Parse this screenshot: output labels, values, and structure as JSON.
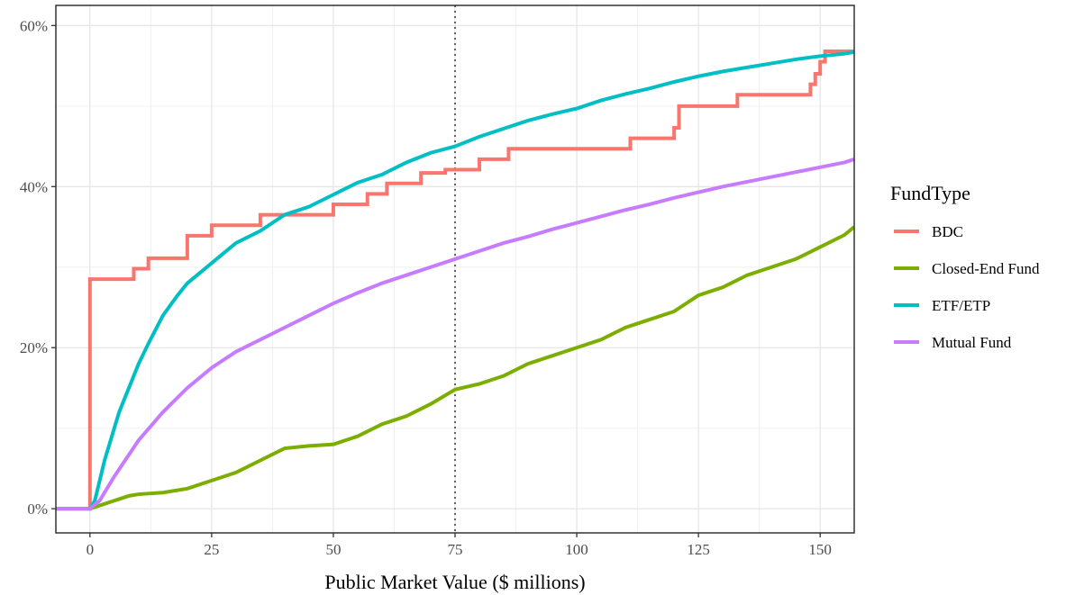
{
  "chart_data": {
    "type": "line",
    "line_style": "step",
    "xlabel": "Public Market Value ($ millions)",
    "ylabel": "",
    "xlim": [
      -7,
      157
    ],
    "ylim": [
      -0.03,
      0.625
    ],
    "x_ticks": [
      0,
      25,
      50,
      75,
      100,
      125,
      150
    ],
    "x_tick_labels": [
      "0",
      "25",
      "50",
      "75",
      "100",
      "125",
      "150"
    ],
    "y_ticks": [
      0,
      0.2,
      0.4,
      0.6
    ],
    "y_tick_labels": [
      "0%",
      "20%",
      "40%",
      "60%"
    ],
    "grid": true,
    "reference_line": {
      "x": 75,
      "style": "dotted"
    },
    "legend": {
      "title": "FundType",
      "placement": "right"
    },
    "series": [
      {
        "name": "BDC",
        "color": "#F8766D",
        "x": [
          -7,
          0,
          0,
          9,
          9,
          12,
          12,
          20,
          20,
          25,
          25,
          35,
          35,
          50,
          50,
          57,
          57,
          61,
          61,
          68,
          68,
          73,
          73,
          80,
          80,
          86,
          86,
          111,
          111,
          120,
          120,
          121,
          121,
          133,
          133,
          148,
          148,
          149,
          149,
          150,
          150,
          151,
          151,
          157
        ],
        "y": [
          0,
          0,
          0.285,
          0.285,
          0.298,
          0.298,
          0.311,
          0.311,
          0.339,
          0.339,
          0.352,
          0.352,
          0.365,
          0.365,
          0.378,
          0.378,
          0.391,
          0.391,
          0.404,
          0.404,
          0.417,
          0.417,
          0.421,
          0.421,
          0.434,
          0.434,
          0.447,
          0.447,
          0.46,
          0.46,
          0.473,
          0.473,
          0.5,
          0.5,
          0.514,
          0.514,
          0.527,
          0.527,
          0.54,
          0.54,
          0.555,
          0.555,
          0.568,
          0.568
        ]
      },
      {
        "name": "Closed-End Fund",
        "color": "#7CAE00",
        "x": [
          -7,
          0,
          2,
          4,
          6,
          8,
          10,
          15,
          20,
          25,
          30,
          35,
          40,
          45,
          50,
          55,
          60,
          65,
          70,
          75,
          80,
          85,
          90,
          95,
          100,
          105,
          110,
          115,
          120,
          125,
          130,
          135,
          140,
          145,
          150,
          155,
          157
        ],
        "y": [
          0,
          0,
          0.004,
          0.008,
          0.012,
          0.016,
          0.018,
          0.02,
          0.025,
          0.035,
          0.045,
          0.06,
          0.075,
          0.078,
          0.08,
          0.09,
          0.105,
          0.115,
          0.13,
          0.148,
          0.155,
          0.165,
          0.18,
          0.19,
          0.2,
          0.21,
          0.225,
          0.235,
          0.245,
          0.265,
          0.275,
          0.29,
          0.3,
          0.31,
          0.325,
          0.34,
          0.35
        ]
      },
      {
        "name": "ETF/ETP",
        "color": "#00BFC4",
        "x": [
          -7,
          0,
          1,
          2,
          3,
          4,
          5,
          6,
          8,
          10,
          12,
          15,
          18,
          20,
          25,
          30,
          35,
          40,
          45,
          50,
          55,
          60,
          65,
          70,
          75,
          80,
          85,
          90,
          95,
          100,
          105,
          110,
          115,
          120,
          125,
          130,
          135,
          140,
          145,
          150,
          155,
          157
        ],
        "y": [
          0,
          0,
          0.01,
          0.035,
          0.06,
          0.08,
          0.1,
          0.12,
          0.15,
          0.18,
          0.205,
          0.24,
          0.265,
          0.28,
          0.305,
          0.33,
          0.345,
          0.365,
          0.375,
          0.39,
          0.405,
          0.415,
          0.43,
          0.442,
          0.45,
          0.462,
          0.472,
          0.482,
          0.49,
          0.497,
          0.507,
          0.515,
          0.522,
          0.53,
          0.537,
          0.543,
          0.548,
          0.553,
          0.558,
          0.562,
          0.565,
          0.567
        ]
      },
      {
        "name": "Mutual Fund",
        "color": "#C77CFF",
        "x": [
          -7,
          0,
          2,
          5,
          10,
          15,
          20,
          25,
          30,
          35,
          40,
          45,
          50,
          55,
          60,
          65,
          70,
          75,
          80,
          85,
          90,
          95,
          100,
          105,
          110,
          115,
          120,
          125,
          130,
          135,
          140,
          145,
          150,
          155,
          157
        ],
        "y": [
          0,
          0,
          0.01,
          0.04,
          0.085,
          0.12,
          0.15,
          0.175,
          0.195,
          0.21,
          0.225,
          0.24,
          0.255,
          0.268,
          0.28,
          0.29,
          0.3,
          0.31,
          0.32,
          0.33,
          0.338,
          0.347,
          0.355,
          0.363,
          0.371,
          0.378,
          0.386,
          0.393,
          0.4,
          0.406,
          0.412,
          0.418,
          0.424,
          0.43,
          0.434
        ]
      }
    ]
  }
}
